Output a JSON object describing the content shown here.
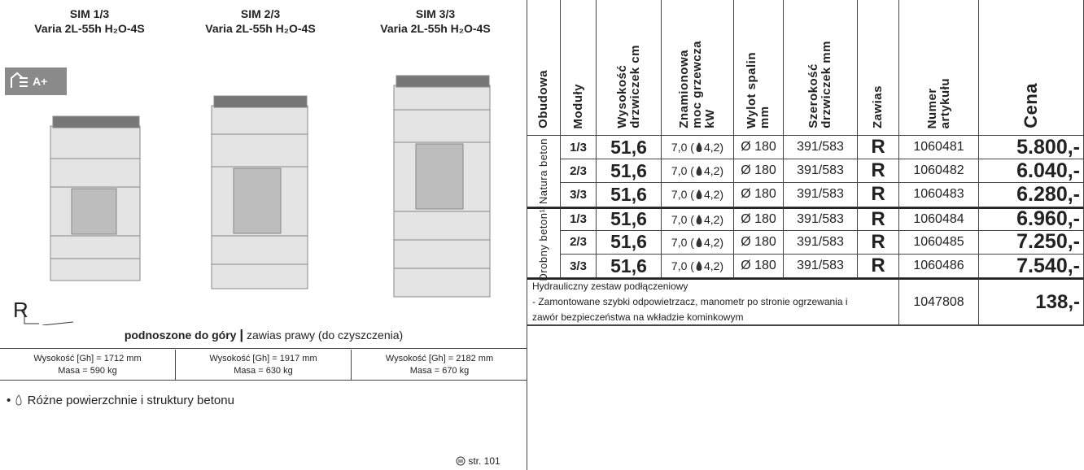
{
  "products": [
    {
      "name": "SIM 1/3",
      "model": "Varia 2L-55h H₂O-4S",
      "height": "Wysokość [Gh] = 1712 mm",
      "mass": "Masa = 590 kg"
    },
    {
      "name": "SIM 2/3",
      "model": "Varia 2L-55h H₂O-4S",
      "height": "Wysokość [Gh] = 1917 mm",
      "mass": "Masa = 630 kg"
    },
    {
      "name": "SIM 3/3",
      "model": "Varia 2L-55h H₂O-4S",
      "height": "Wysokość [Gh] = 2182 mm",
      "mass": "Masa = 670 kg"
    }
  ],
  "energy_label": "A+",
  "hinge_symbol": "R",
  "door_caption": {
    "bold": "podnoszone do góry",
    "separator": "|",
    "rest": "zawias prawy (do czyszczenia)"
  },
  "bullet": "•",
  "feature": "Różne powierzchnie i struktury betonu",
  "page_ref": "str. 101",
  "table": {
    "headers": [
      [
        "Obudowa"
      ],
      [
        "Moduły"
      ],
      [
        "Wysokość",
        "drzwiczek cm"
      ],
      [
        "Znamionowa",
        "moc grzewcza",
        "kW"
      ],
      [
        "Wylot spalin",
        "mm"
      ],
      [
        "Szerokość",
        "drzwiczek mm"
      ],
      [
        "Zawias"
      ],
      [
        "Numer",
        "artykułu"
      ],
      [
        "Cena"
      ]
    ],
    "groups": [
      {
        "name": "Natura beton",
        "rows": [
          {
            "module": "1/3",
            "height": "51,6",
            "power": "7,0 (",
            "water": "4,2)",
            "flue": "Ø 180",
            "width": "391/583",
            "hinge": "R",
            "article": "1060481",
            "price": "5.800,-"
          },
          {
            "module": "2/3",
            "height": "51,6",
            "power": "7,0 (",
            "water": "4,2)",
            "flue": "Ø 180",
            "width": "391/583",
            "hinge": "R",
            "article": "1060482",
            "price": "6.040,-"
          },
          {
            "module": "3/3",
            "height": "51,6",
            "power": "7,0 (",
            "water": "4,2)",
            "flue": "Ø 180",
            "width": "391/583",
            "hinge": "R",
            "article": "1060483",
            "price": "6.280,-"
          }
        ]
      },
      {
        "name": "Drobny beton¹⁾",
        "rows": [
          {
            "module": "1/3",
            "height": "51,6",
            "power": "7,0 (",
            "water": "4,2)",
            "flue": "Ø 180",
            "width": "391/583",
            "hinge": "R",
            "article": "1060484",
            "price": "6.960,-"
          },
          {
            "module": "2/3",
            "height": "51,6",
            "power": "7,0 (",
            "water": "4,2)",
            "flue": "Ø 180",
            "width": "391/583",
            "hinge": "R",
            "article": "1060485",
            "price": "7.250,-"
          },
          {
            "module": "3/3",
            "height": "51,6",
            "power": "7,0 (",
            "water": "4,2)",
            "flue": "Ø 180",
            "width": "391/583",
            "hinge": "R",
            "article": "1060486",
            "price": "7.540,-"
          }
        ]
      }
    ],
    "accessory": {
      "lines": [
        "Hydrauliczny zestaw podłączeniowy",
        "- Zamontowane szybki odpowietrzacz, manometr po stronie ogrzewania i",
        "zawór bezpieczeństwa na wkładzie kominkowym"
      ],
      "article": "1047808",
      "price": "138,-"
    }
  }
}
